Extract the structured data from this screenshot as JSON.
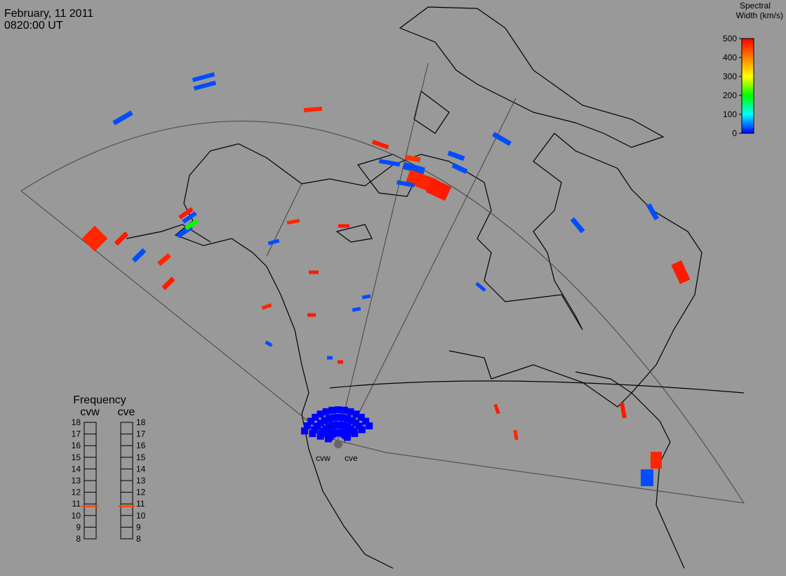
{
  "header": {
    "date": "February, 11 2011",
    "time": "0820:00 UT"
  },
  "colorbar": {
    "title": [
      "Spectral",
      "Width (km/s)"
    ],
    "lim": [
      0,
      500
    ],
    "ticks": [
      0,
      100,
      200,
      300,
      400,
      500
    ],
    "colors": [
      "#0000ff",
      "#00ffff",
      "#00ff00",
      "#ffff00",
      "#ff8000",
      "#ff0000"
    ]
  },
  "frequency": {
    "title": "Frequency",
    "lim": [
      8,
      18
    ],
    "ticks": [
      8,
      9,
      10,
      11,
      12,
      13,
      14,
      15,
      16,
      17,
      18
    ],
    "color": "#ff4500",
    "radars": [
      {
        "name": "cvw",
        "value": 10.8
      },
      {
        "name": "cve",
        "value": 10.8
      }
    ]
  },
  "sites": [
    {
      "label": "cvw"
    },
    {
      "label": "cve"
    }
  ],
  "cells": [
    30,
    30,
    30,
    470,
    480,
    460,
    30,
    30,
    470,
    480,
    30,
    30,
    30,
    30,
    200,
    30,
    480,
    470,
    480,
    30,
    470,
    480,
    30,
    470,
    480,
    480,
    470,
    480,
    30,
    30,
    30,
    30,
    480,
    30,
    30,
    30,
    480,
    470,
    480,
    480,
    470,
    30,
    30
  ]
}
